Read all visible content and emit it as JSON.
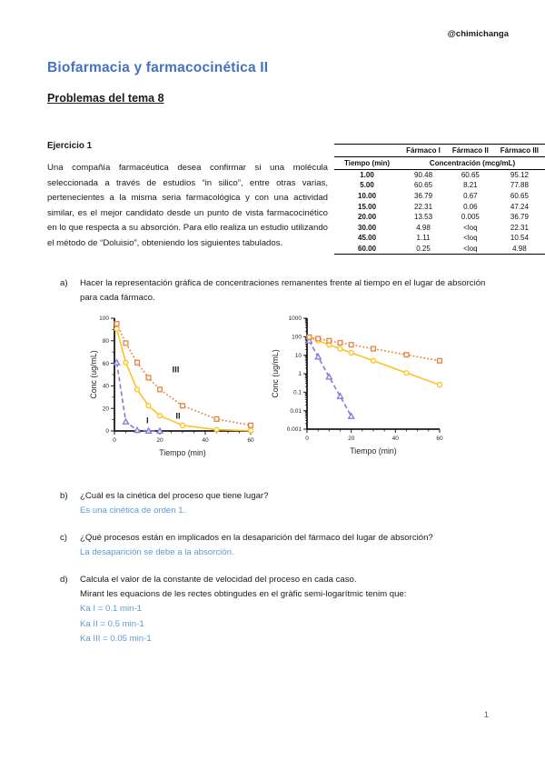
{
  "page": {
    "handle": "@chimichanga",
    "number": "1"
  },
  "title": "Biofarmacia y farmacocinética II",
  "subtitle": "Problemas del tema 8",
  "exercise": {
    "heading": "Ejercicio 1",
    "intro": "Una compañía farmacéutica desea confirmar si una molécula seleccionada a través de estudios “in silico”, entre otras varias, pertenecientes a la misma seria farmacológica y con una actividad similar, es el mejor candidato desde un punto de vista farmacocinético en lo que respecta a su absorción. Para ello realiza un estudio utilizando el método de “Doluisio”, obteniendo los siguientes tabulados."
  },
  "table": {
    "col_headers": [
      "Fármaco I",
      "Fármaco II",
      "Fármaco III"
    ],
    "row_header": "Tiempo (min)",
    "span_header": "Concentración (mcg/mL)",
    "rows": [
      [
        "1.00",
        "90.48",
        "60.65",
        "95.12"
      ],
      [
        "5.00",
        "60.65",
        "8.21",
        "77.88"
      ],
      [
        "10.00",
        "36.79",
        "0.67",
        "60.65"
      ],
      [
        "15.00",
        "22.31",
        "0.06",
        "47.24"
      ],
      [
        "20.00",
        "13.53",
        "0.005",
        "36.79"
      ],
      [
        "30.00",
        "4.98",
        "<loq",
        "22.31"
      ],
      [
        "45.00",
        "1.11",
        "<loq",
        "10.54"
      ],
      [
        "60.00",
        "0.25",
        "<loq",
        "4.98"
      ]
    ]
  },
  "items": {
    "a": {
      "letter": "a)",
      "text": "Hacer la representación gráfica de concentraciones remanentes frente al tiempo en el lugar de absorción para cada fármaco."
    },
    "b": {
      "letter": "b)",
      "question": "¿Cuál es la cinética del proceso que tiene lugar?",
      "answer": "Es una cinética de orden 1."
    },
    "c": {
      "letter": "c)",
      "question": "¿Qué procesos están en implicados en la desaparición del fármaco del lugar de absorción?",
      "answer": "La desaparición se debe a la absorción."
    },
    "d": {
      "letter": "d)",
      "question": "Calcula el valor de la constante de velocidad del proceso en cada caso.",
      "note": "Mirant les equacions de les rectes obtingudes en el gràfic semi-logarítmic tenim que:",
      "answers": [
        "Ka I = 0.1 min-1",
        "Ka II = 0.5 min-1",
        "Ka III = 0.05 min-1"
      ]
    }
  },
  "colors": {
    "title_blue": "#4472C4",
    "answer_blue": "#5B9BD5",
    "farmaco_I_yellow": "#FFC226",
    "farmaco_II_purple": "#8678DC",
    "farmaco_III_orange": "#E5853F"
  },
  "chart_data": [
    {
      "type": "line",
      "scale": "linear",
      "xlabel": "Tiempo (min)",
      "ylabel": "Conc (ug/mL)",
      "xlim": [
        0,
        60
      ],
      "ylim": [
        0,
        100
      ],
      "x_ticks": [
        0,
        20,
        40,
        60
      ],
      "y_ticks": [
        0,
        20,
        40,
        60,
        80,
        100
      ],
      "series": [
        {
          "name": "Fármaco I",
          "marker": "circle",
          "dash": "solid",
          "color": "#FFC226",
          "points": [
            [
              1,
              90.48
            ],
            [
              5,
              60.65
            ],
            [
              10,
              36.79
            ],
            [
              15,
              22.31
            ],
            [
              20,
              13.53
            ],
            [
              30,
              4.98
            ],
            [
              45,
              1.11
            ],
            [
              60,
              0.25
            ]
          ]
        },
        {
          "name": "Fármaco II",
          "marker": "triangle",
          "dash": "dashed",
          "color": "#8678DC",
          "points": [
            [
              1,
              60.65
            ],
            [
              5,
              8.21
            ],
            [
              10,
              0.67
            ],
            [
              15,
              0.06
            ],
            [
              20,
              0.005
            ]
          ]
        },
        {
          "name": "Fármaco III",
          "marker": "square",
          "dash": "dotted",
          "color": "#E5853F",
          "points": [
            [
              1,
              95.12
            ],
            [
              5,
              77.88
            ],
            [
              10,
              60.65
            ],
            [
              15,
              47.24
            ],
            [
              20,
              36.79
            ],
            [
              30,
              22.31
            ],
            [
              45,
              10.54
            ],
            [
              60,
              4.98
            ]
          ]
        }
      ],
      "annotations": [
        {
          "text": "I",
          "x": 14.5,
          "y": 7
        },
        {
          "text": "II",
          "x": 28,
          "y": 11
        },
        {
          "text": "III",
          "x": 27,
          "y": 52
        }
      ]
    },
    {
      "type": "line",
      "scale": "log",
      "xlabel": "Tiempo (min)",
      "ylabel": "Conc (ug/mL)",
      "xlim": [
        0,
        60
      ],
      "ylim": [
        0.001,
        1000
      ],
      "x_ticks": [
        0,
        20,
        40,
        60
      ],
      "y_ticks": [
        1000,
        100,
        10,
        1,
        0.1,
        0.01,
        0.001
      ],
      "series": [
        {
          "name": "Fármaco I",
          "marker": "circle",
          "dash": "solid",
          "color": "#FFC226",
          "points": [
            [
              1,
              90.48
            ],
            [
              5,
              60.65
            ],
            [
              10,
              36.79
            ],
            [
              15,
              22.31
            ],
            [
              20,
              13.53
            ],
            [
              30,
              4.98
            ],
            [
              45,
              1.11
            ],
            [
              60,
              0.25
            ]
          ]
        },
        {
          "name": "Fármaco II",
          "marker": "triangle",
          "dash": "dashed",
          "color": "#8678DC",
          "points": [
            [
              1,
              60.65
            ],
            [
              5,
              8.21
            ],
            [
              10,
              0.67
            ],
            [
              15,
              0.06
            ],
            [
              20,
              0.005
            ]
          ]
        },
        {
          "name": "Fármaco III",
          "marker": "square",
          "dash": "dotted",
          "color": "#E5853F",
          "points": [
            [
              1,
              95.12
            ],
            [
              5,
              77.88
            ],
            [
              10,
              60.65
            ],
            [
              15,
              47.24
            ],
            [
              20,
              36.79
            ],
            [
              30,
              22.31
            ],
            [
              45,
              10.54
            ],
            [
              60,
              4.98
            ]
          ]
        }
      ],
      "annotations": []
    }
  ]
}
